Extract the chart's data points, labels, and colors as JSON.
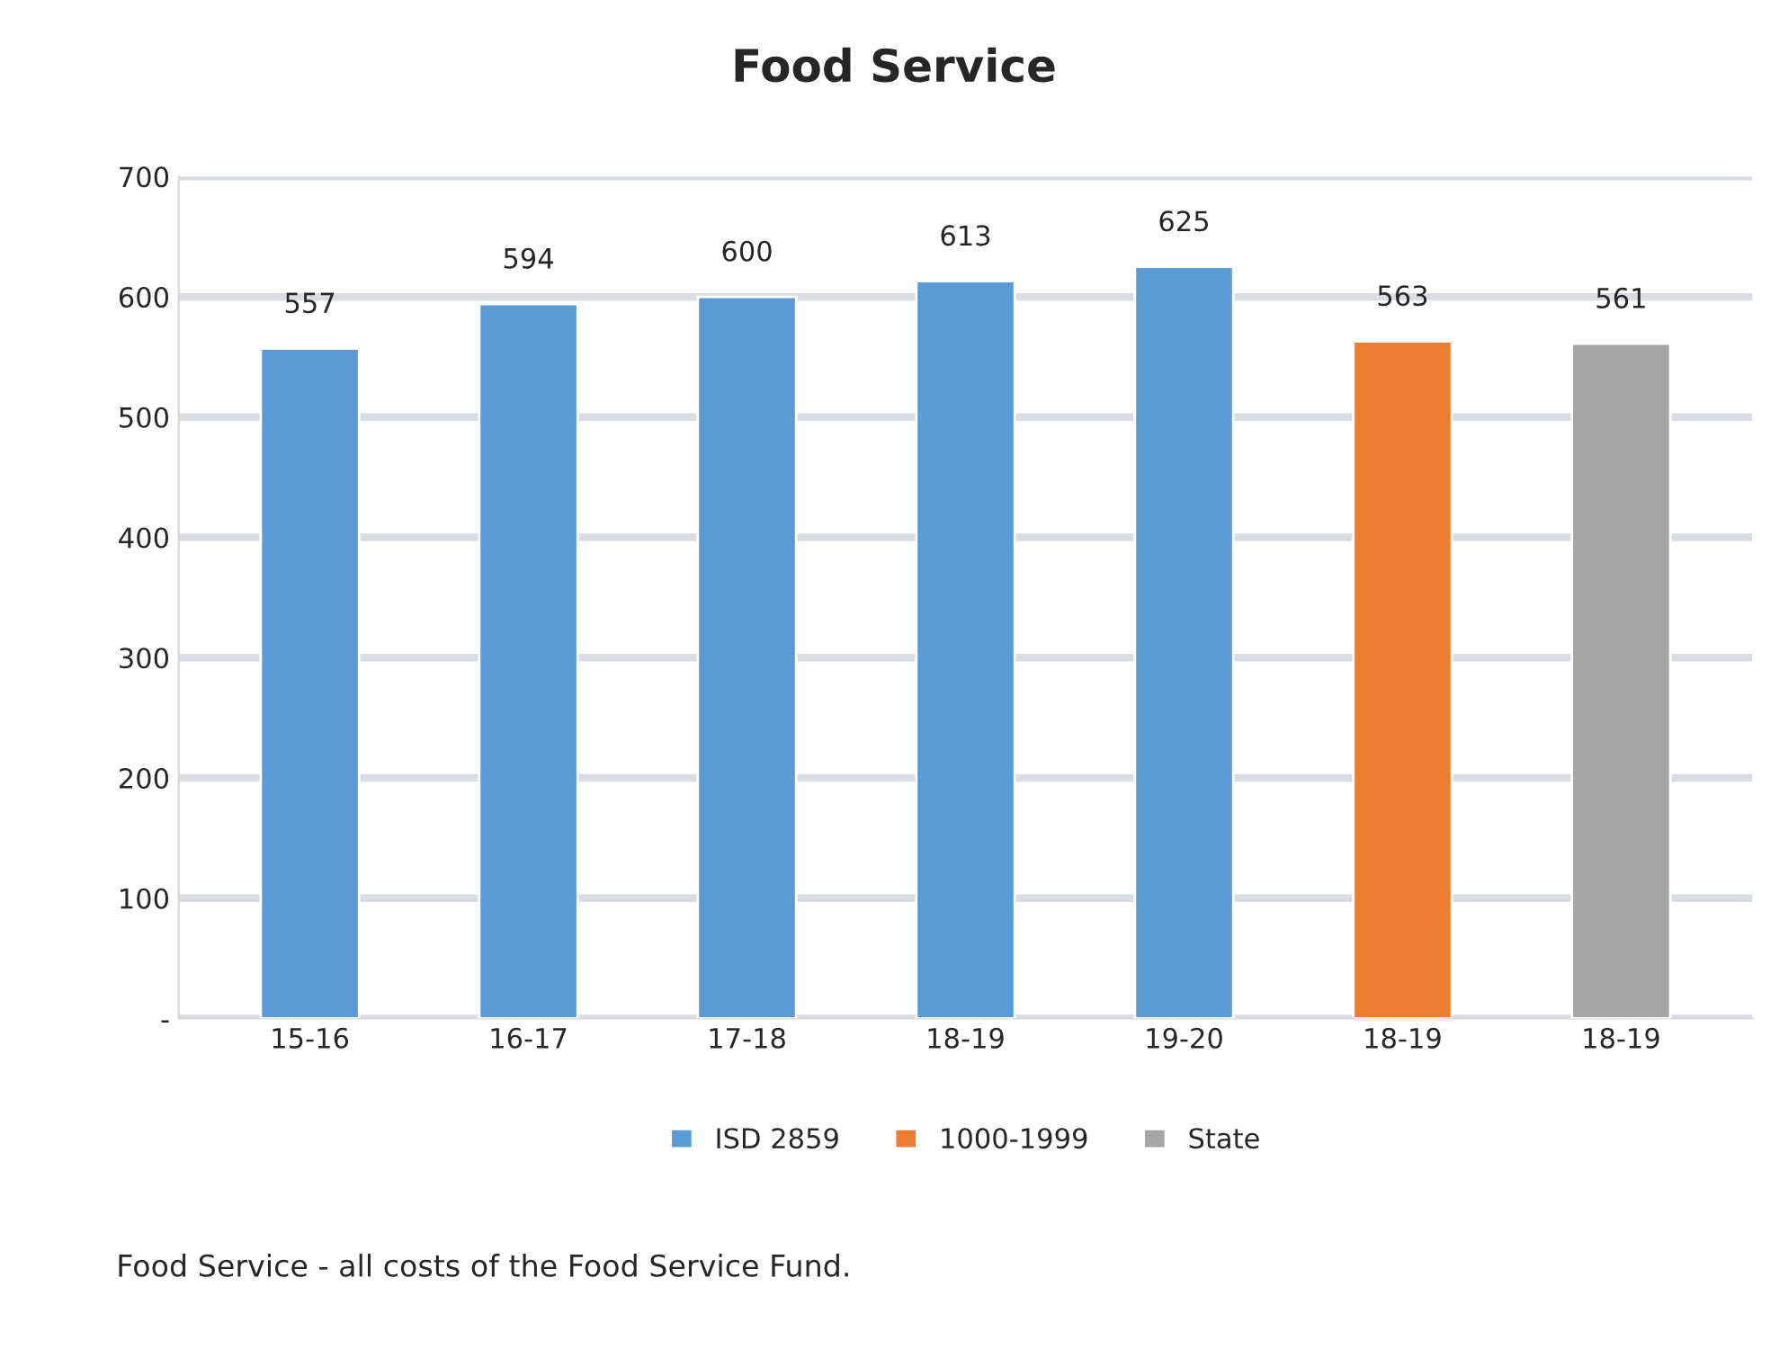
{
  "chart_data": {
    "type": "bar",
    "title": "Food Service",
    "categories": [
      "15-16",
      "16-17",
      "17-18",
      "18-19",
      "19-20",
      "18-19",
      "18-19"
    ],
    "series": [
      {
        "name": "ISD 2859",
        "color": "#5b9bd5",
        "values": [
          557,
          594,
          600,
          613,
          625,
          null,
          null
        ]
      },
      {
        "name": "1000-1999",
        "color": "#ed7d31",
        "values": [
          null,
          null,
          null,
          null,
          null,
          563,
          null
        ]
      },
      {
        "name": "State",
        "color": "#a5a5a5",
        "values": [
          null,
          null,
          null,
          null,
          null,
          null,
          561
        ]
      }
    ],
    "ylim": [
      0,
      700
    ],
    "yticks": [
      {
        "value": 0,
        "label": "-"
      },
      100,
      200,
      300,
      400,
      500,
      600,
      700
    ],
    "grid": "y",
    "legend": "bottom",
    "data_labels": true,
    "annotations": [
      "Food Service - all costs of the Food Service Fund."
    ]
  }
}
